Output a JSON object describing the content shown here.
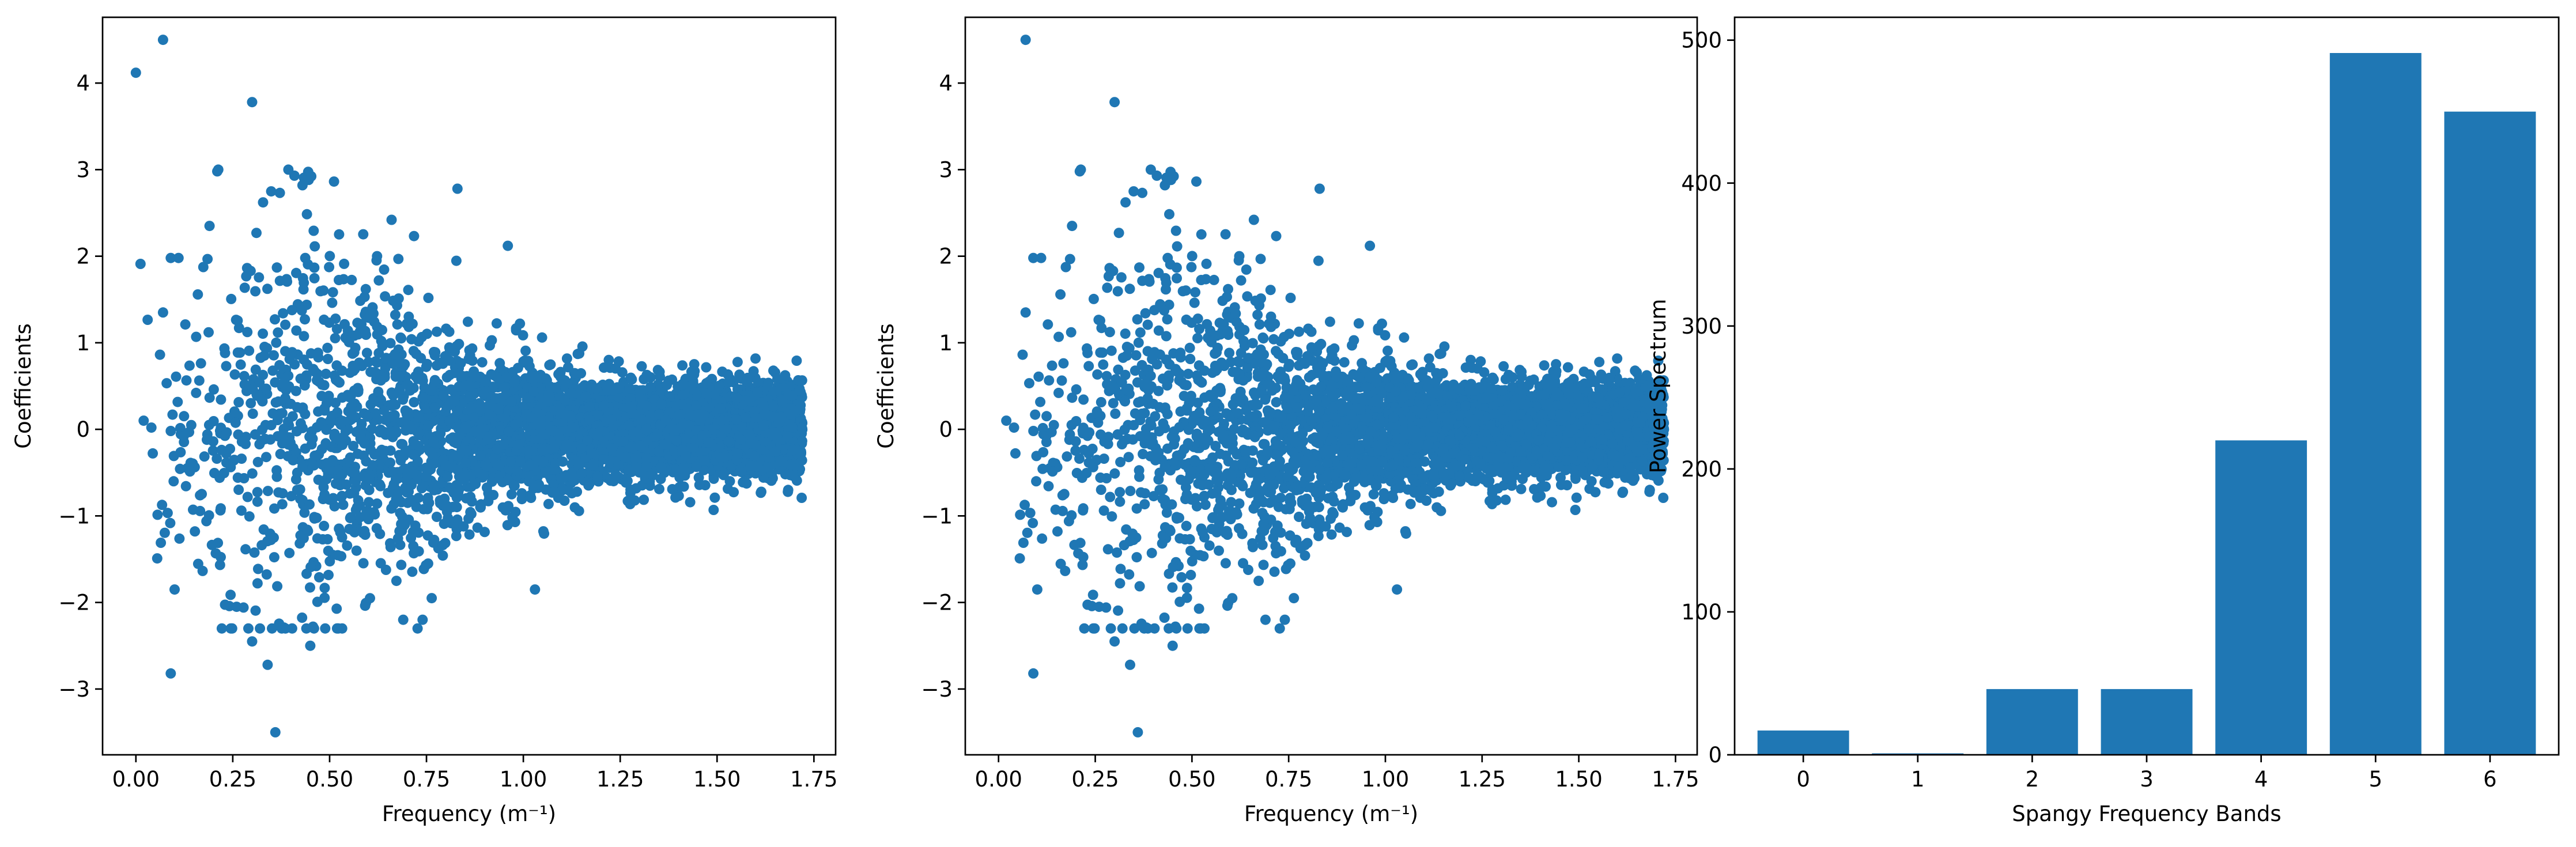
{
  "chart_data": [
    {
      "type": "scatter",
      "title": "",
      "xlabel": "Frequency (m⁻¹)",
      "ylabel": "Coefficients",
      "xlim": [
        -0.086,
        1.806
      ],
      "ylim": [
        -3.76,
        4.76
      ],
      "xticks": [
        0.0,
        0.25,
        0.5,
        0.75,
        1.0,
        1.25,
        1.5,
        1.75
      ],
      "xtick_labels": [
        "0.00",
        "0.25",
        "0.50",
        "0.75",
        "1.00",
        "1.25",
        "1.50",
        "1.75"
      ],
      "yticks": [
        -3,
        -2,
        -1,
        0,
        1,
        2,
        3,
        4
      ],
      "ytick_labels": [
        "−3",
        "−2",
        "−1",
        "0",
        "1",
        "2",
        "3",
        "4"
      ],
      "color": "#1f77b4",
      "grid": false,
      "x_range_points": [
        0.0,
        1.72
      ],
      "approx_point_count": 4500,
      "outliers": [
        {
          "x": 0.0,
          "y": 4.12
        },
        {
          "x": 0.07,
          "y": 4.5
        },
        {
          "x": 0.3,
          "y": 3.78
        },
        {
          "x": 0.21,
          "y": 2.98
        },
        {
          "x": 0.43,
          "y": 2.82
        },
        {
          "x": 0.83,
          "y": 2.78
        },
        {
          "x": 0.66,
          "y": 2.42
        },
        {
          "x": 0.19,
          "y": 2.35
        },
        {
          "x": 0.96,
          "y": 2.12
        },
        {
          "x": 0.09,
          "y": 1.98
        },
        {
          "x": 0.11,
          "y": 1.98
        },
        {
          "x": 0.07,
          "y": 1.35
        },
        {
          "x": 0.02,
          "y": 0.1
        },
        {
          "x": 0.04,
          "y": 0.02
        },
        {
          "x": 0.09,
          "y": -2.82
        },
        {
          "x": 0.36,
          "y": -3.5
        },
        {
          "x": 0.34,
          "y": -2.72
        },
        {
          "x": 0.3,
          "y": -2.45
        },
        {
          "x": 0.45,
          "y": -2.5
        },
        {
          "x": 0.69,
          "y": -2.2
        },
        {
          "x": 0.74,
          "y": -2.2
        },
        {
          "x": 1.03,
          "y": -1.85
        },
        {
          "x": 0.1,
          "y": -1.85
        },
        {
          "x": 0.26,
          "y": -2.05
        }
      ]
    },
    {
      "type": "scatter",
      "title": "",
      "xlabel": "Frequency (m⁻¹)",
      "ylabel": "Coefficients",
      "xlim": [
        -0.086,
        1.806
      ],
      "ylim": [
        -3.76,
        4.76
      ],
      "xticks": [
        0.0,
        0.25,
        0.5,
        0.75,
        1.0,
        1.25,
        1.5,
        1.75
      ],
      "xtick_labels": [
        "0.00",
        "0.25",
        "0.50",
        "0.75",
        "1.00",
        "1.25",
        "1.50",
        "1.75"
      ],
      "yticks": [
        -3,
        -2,
        -1,
        0,
        1,
        2,
        3,
        4
      ],
      "ytick_labels": [
        "−3",
        "−2",
        "−1",
        "0",
        "1",
        "2",
        "3",
        "4"
      ],
      "color": "#1f77b4",
      "grid": false,
      "x_range_points": [
        0.0,
        1.72
      ],
      "approx_point_count": 4500,
      "outliers": [
        {
          "x": 0.07,
          "y": 4.5
        },
        {
          "x": 0.3,
          "y": 3.78
        },
        {
          "x": 0.21,
          "y": 2.98
        },
        {
          "x": 0.43,
          "y": 2.82
        },
        {
          "x": 0.83,
          "y": 2.78
        },
        {
          "x": 0.66,
          "y": 2.42
        },
        {
          "x": 0.19,
          "y": 2.35
        },
        {
          "x": 0.96,
          "y": 2.12
        },
        {
          "x": 0.09,
          "y": 1.98
        },
        {
          "x": 0.11,
          "y": 1.98
        },
        {
          "x": 0.07,
          "y": 1.35
        },
        {
          "x": 0.02,
          "y": 0.1
        },
        {
          "x": 0.04,
          "y": 0.02
        },
        {
          "x": 0.09,
          "y": -2.82
        },
        {
          "x": 0.36,
          "y": -3.5
        },
        {
          "x": 0.34,
          "y": -2.72
        },
        {
          "x": 0.3,
          "y": -2.45
        },
        {
          "x": 0.45,
          "y": -2.5
        },
        {
          "x": 0.69,
          "y": -2.2
        },
        {
          "x": 0.74,
          "y": -2.2
        },
        {
          "x": 1.03,
          "y": -1.85
        },
        {
          "x": 0.1,
          "y": -1.85
        },
        {
          "x": 0.26,
          "y": -2.05
        }
      ]
    },
    {
      "type": "bar",
      "title": "",
      "xlabel": "Spangy Frequency Bands",
      "ylabel": "Power Spectrum",
      "categories": [
        "0",
        "1",
        "2",
        "3",
        "4",
        "5",
        "6"
      ],
      "values": [
        17,
        1,
        46,
        46,
        220,
        491,
        450
      ],
      "ylim": [
        0,
        516
      ],
      "yticks": [
        0,
        100,
        200,
        300,
        400,
        500
      ],
      "ytick_labels": [
        "0",
        "100",
        "200",
        "300",
        "400",
        "500"
      ],
      "color": "#1f77b4",
      "grid": false
    }
  ]
}
